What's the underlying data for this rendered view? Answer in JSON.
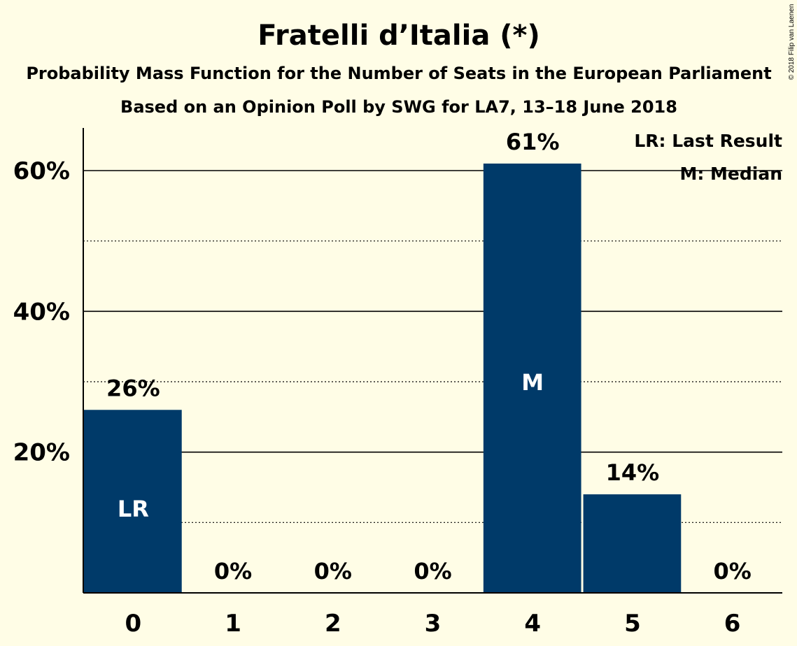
{
  "chart_data": {
    "type": "bar",
    "title": "Fratelli d’Italia (*)",
    "subtitle": "Probability Mass Function for the Number of Seats in the European Parliament",
    "subtitle2": "Based on an Opinion Poll by SWG for LA7, 13–18 June 2018",
    "categories": [
      "0",
      "1",
      "2",
      "3",
      "4",
      "5",
      "6"
    ],
    "values": [
      26,
      0,
      0,
      0,
      61,
      14,
      0
    ],
    "value_labels": [
      "26%",
      "0%",
      "0%",
      "0%",
      "61%",
      "14%",
      "0%"
    ],
    "bar_markers": [
      "LR",
      "",
      "",
      "",
      "M",
      "",
      ""
    ],
    "ylim": [
      0,
      66
    ],
    "yticks": [
      20,
      40,
      60
    ],
    "ytick_labels": [
      "20%",
      "40%",
      "60%"
    ],
    "minor_gridlines": [
      10,
      30,
      50
    ],
    "legend": [
      "LR: Last Result",
      "M: Median"
    ],
    "legend_position": "top-right",
    "bar_color": "#003A69",
    "background_color": "#FFFDE6",
    "copyright": "© 2018 Filip van Laenen"
  }
}
